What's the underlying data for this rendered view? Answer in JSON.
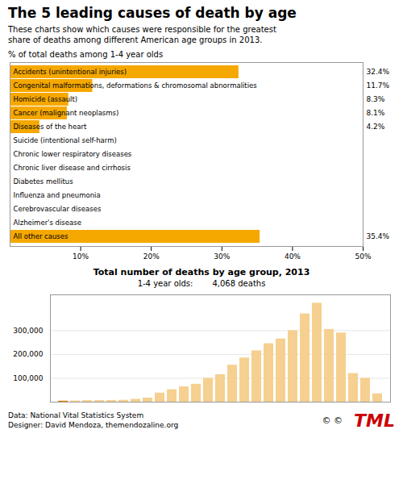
{
  "chart_data": [
    {
      "type": "bar",
      "orientation": "horizontal",
      "title": "The 5 leading causes of death by age",
      "subtitle": "These charts show which causes were responsible for the greatest\nshare of deaths among different American age groups in 2013.",
      "xlabel": "% of total deaths among 1-4 year olds",
      "categories": [
        "Accidents (unintentional injuries)",
        "Congenital malformations, deformations & chromosomal abnormalities",
        "Homicide (assault)",
        "Cancer (malignant neoplasms)",
        "Diseases of the heart",
        "Suicide (intentional self-harm)",
        "Chronic lower respiratory diseases",
        "Chronic liver disease and cirrhosis",
        "Diabetes mellitus",
        "Influenza and pneumonia",
        "Cerebrovascular diseases",
        "Alzheimer's disease",
        "All other causes"
      ],
      "values": [
        32.4,
        11.7,
        8.3,
        8.1,
        4.2,
        0,
        0,
        0,
        0,
        0,
        0,
        0,
        35.4
      ],
      "value_labels": [
        "32.4%",
        "11.7%",
        "8.3%",
        "8.1%",
        "4.2%",
        null,
        null,
        null,
        null,
        null,
        null,
        null,
        "35.4%"
      ],
      "data_labels": true,
      "color": "#F5A800",
      "xlim": [
        0,
        50
      ],
      "xticks": [
        {
          "value": 10,
          "label": "10%"
        },
        {
          "value": 20,
          "label": "20%"
        },
        {
          "value": 30,
          "label": "30%"
        },
        {
          "value": 40,
          "label": "40%"
        },
        {
          "value": 50,
          "label": "50%"
        }
      ]
    },
    {
      "type": "bar",
      "title": "Total number of deaths by age group, 2013",
      "subtitle": [
        "1-4 year olds:",
        "4,068  deaths"
      ],
      "categories": [
        null,
        null,
        null,
        null,
        null,
        null,
        null,
        null,
        null,
        null,
        null,
        null,
        null,
        null,
        null,
        null,
        null,
        null,
        null,
        null,
        null,
        null,
        null,
        null,
        null,
        null,
        null
      ],
      "values": [
        4068,
        5000,
        6300,
        6500,
        7000,
        7800,
        12000,
        17000,
        38000,
        52000,
        64000,
        75000,
        100000,
        115000,
        155000,
        185000,
        215000,
        245000,
        265000,
        300000,
        370000,
        415000,
        305000,
        290000,
        120000,
        100000,
        35000
      ],
      "colors": [
        "#E07B00",
        "#F5D090",
        "#F5D090",
        "#F5D090",
        "#F5D090",
        "#F5D090",
        "#F5D090",
        "#F5D090",
        "#F5D090",
        "#F5D090",
        "#F5D090",
        "#F5D090",
        "#F5D090",
        "#F5D090",
        "#F5D090",
        "#F5D090",
        "#F5D090",
        "#F5D090",
        "#F5D090",
        "#F5D090",
        "#F5D090",
        "#F5D090",
        "#F5D090",
        "#F5D090",
        "#F5D090",
        "#F5D090",
        "#F5D090"
      ],
      "ylim": [
        0,
        450000
      ],
      "yticks": [
        {
          "value": 100000,
          "label": "100,000"
        },
        {
          "value": 200000,
          "label": "200,000"
        },
        {
          "value": 300000,
          "label": "300,000"
        }
      ],
      "grid": true,
      "tick_labels": "y",
      "footnotes": [
        "Data: National Vital Statistics System",
        "Designer: David Mendoza, themendozaline.org"
      ],
      "annotations": [
        {
          "text": "TML",
          "color": "#CC0000"
        },
        {
          "text": "© ©"
        }
      ]
    }
  ]
}
